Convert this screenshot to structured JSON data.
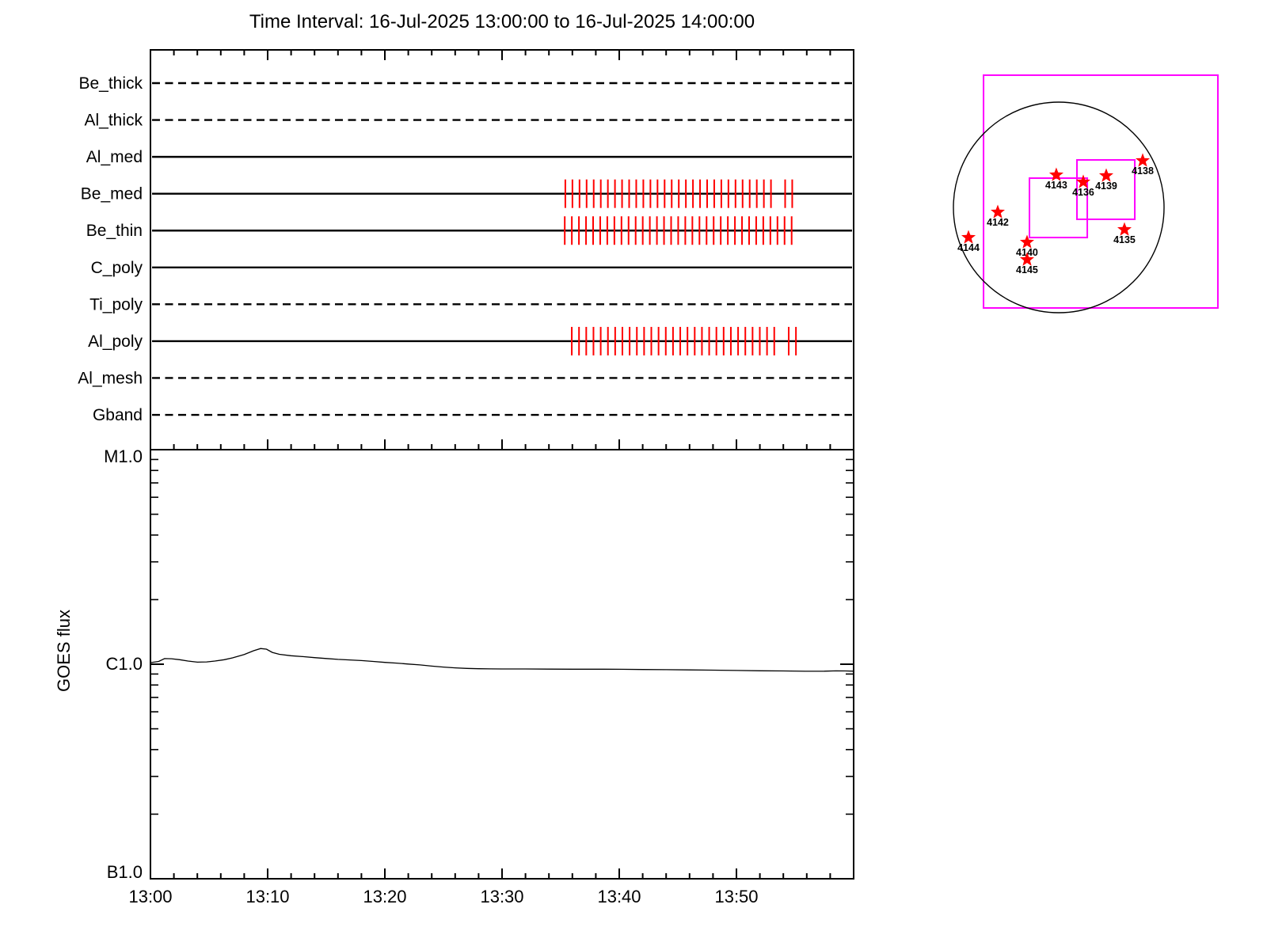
{
  "title": "Time Interval: 16-Jul-2025 13:00:00 to 16-Jul-2025 14:00:00",
  "colors": {
    "background": "#ffffff",
    "axis": "#000000",
    "exposure_tick": "#ff0000",
    "fov_box": "#ff00ff",
    "star": "#ff0000",
    "region_label": "#000000"
  },
  "chart_data": [
    {
      "type": "timeline",
      "panel": "xrt-filter-timeline",
      "x_axis": {
        "start_label": "13:00",
        "end_label": "14:00",
        "duration_min": 60,
        "major_tick_min": 10,
        "minor_tick_min": 2
      },
      "rows": [
        {
          "label": "Be_thick",
          "line_style": "dashed",
          "exposure_ticks": null
        },
        {
          "label": "Al_thick",
          "line_style": "dashed",
          "exposure_ticks": null
        },
        {
          "label": "Al_med",
          "line_style": "solid",
          "exposure_ticks": null
        },
        {
          "label": "Be_med",
          "line_style": "solid",
          "exposure_ticks": {
            "start_min": 35.4,
            "spacing_min": 0.605,
            "count": 33,
            "skip_indices": [
              30
            ]
          }
        },
        {
          "label": "Be_thin",
          "line_style": "solid",
          "exposure_ticks": {
            "start_min": 35.35,
            "spacing_min": 0.605,
            "count": 33,
            "skip_indices": []
          }
        },
        {
          "label": "C_poly",
          "line_style": "solid",
          "exposure_ticks": null
        },
        {
          "label": "Ti_poly",
          "line_style": "dashed",
          "exposure_ticks": null
        },
        {
          "label": "Al_poly",
          "line_style": "solid",
          "exposure_ticks": {
            "start_min": 35.95,
            "spacing_min": 0.617,
            "count": 32,
            "skip_indices": [
              29
            ]
          }
        },
        {
          "label": "Al_mesh",
          "line_style": "dashed",
          "exposure_ticks": null
        },
        {
          "label": "Gband",
          "line_style": "dashed",
          "exposure_ticks": null
        }
      ]
    },
    {
      "type": "line",
      "panel": "goes-flux",
      "ylabel": "GOES flux",
      "y_scale": "log",
      "y_ticks": [
        {
          "label": "M1.0",
          "flux_c_units": 10
        },
        {
          "label": "C1.0",
          "flux_c_units": 1
        },
        {
          "label": "B1.0",
          "flux_c_units": 0.1
        }
      ],
      "x_tick_labels": [
        "13:00",
        "13:10",
        "13:20",
        "13:30",
        "13:40",
        "13:50"
      ],
      "series": [
        {
          "name": "GOES flux",
          "points_min_vs_flux_c_units": [
            [
              0,
              1.017
            ],
            [
              0.7,
              1.03
            ],
            [
              1.2,
              1.062
            ],
            [
              1.8,
              1.06
            ],
            [
              2.5,
              1.05
            ],
            [
              3.2,
              1.035
            ],
            [
              4,
              1.022
            ],
            [
              4.8,
              1.025
            ],
            [
              5.5,
              1.035
            ],
            [
              6.3,
              1.05
            ],
            [
              7,
              1.07
            ],
            [
              8,
              1.11
            ],
            [
              8.8,
              1.155
            ],
            [
              9.4,
              1.183
            ],
            [
              9.9,
              1.175
            ],
            [
              10.4,
              1.135
            ],
            [
              11,
              1.112
            ],
            [
              12,
              1.095
            ],
            [
              13,
              1.085
            ],
            [
              14,
              1.073
            ],
            [
              15,
              1.063
            ],
            [
              16,
              1.053
            ],
            [
              17,
              1.047
            ],
            [
              18,
              1.04
            ],
            [
              19,
              1.03
            ],
            [
              20,
              1.02
            ],
            [
              21,
              1.012
            ],
            [
              22,
              1.002
            ],
            [
              23,
              0.992
            ],
            [
              24,
              0.98
            ],
            [
              25,
              0.97
            ],
            [
              26,
              0.962
            ],
            [
              27,
              0.956
            ],
            [
              28,
              0.953
            ],
            [
              29,
              0.951
            ],
            [
              30,
              0.95
            ],
            [
              32,
              0.95
            ],
            [
              34,
              0.949
            ],
            [
              36,
              0.948
            ],
            [
              38,
              0.948
            ],
            [
              40,
              0.947
            ],
            [
              42,
              0.945
            ],
            [
              44,
              0.943
            ],
            [
              46,
              0.941
            ],
            [
              48,
              0.938
            ],
            [
              50,
              0.935
            ],
            [
              52,
              0.932
            ],
            [
              54,
              0.93
            ],
            [
              56,
              0.927
            ],
            [
              57.5,
              0.928
            ],
            [
              58.5,
              0.931
            ],
            [
              59.3,
              0.93
            ],
            [
              60,
              0.928
            ]
          ]
        }
      ]
    },
    {
      "type": "map",
      "panel": "solar-disk-fov",
      "units": "solar_radii_from_disk_center",
      "active_regions": [
        {
          "noaa": "4143",
          "x": -0.023,
          "y": -0.308
        },
        {
          "noaa": "4136",
          "x": 0.233,
          "y": -0.241
        },
        {
          "noaa": "4139",
          "x": 0.451,
          "y": -0.301
        },
        {
          "noaa": "4138",
          "x": 0.797,
          "y": -0.444
        },
        {
          "noaa": "4142",
          "x": -0.579,
          "y": 0.045
        },
        {
          "noaa": "4144",
          "x": -0.857,
          "y": 0.286
        },
        {
          "noaa": "4140",
          "x": -0.301,
          "y": 0.331
        },
        {
          "noaa": "4145",
          "x": -0.301,
          "y": 0.496
        },
        {
          "noaa": "4135",
          "x": 0.624,
          "y": 0.211
        }
      ],
      "fov_boxes": [
        {
          "name": "full-fov",
          "x1": -0.714,
          "y1": -1.256,
          "x2": 1.511,
          "y2": 0.955
        },
        {
          "name": "sub-fov-1",
          "x1": -0.278,
          "y1": -0.278,
          "x2": 0.271,
          "y2": 0.286
        },
        {
          "name": "sub-fov-2",
          "x1": 0.173,
          "y1": -0.451,
          "x2": 0.722,
          "y2": 0.113
        }
      ]
    }
  ]
}
